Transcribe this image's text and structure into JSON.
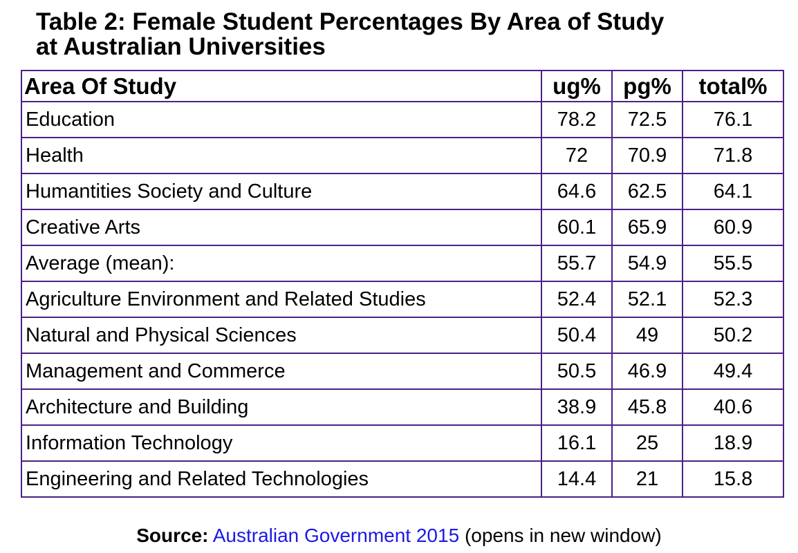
{
  "title": {
    "line1": "Table 2: Female Student Percentages By Area of Study",
    "line2": "at Australian Universities"
  },
  "table": {
    "headers": [
      "Area Of Study",
      "ug%",
      "pg%",
      "total%"
    ],
    "rows": [
      {
        "area": "Education",
        "ug": "78.2",
        "pg": "72.5",
        "total": "76.1"
      },
      {
        "area": "Health",
        "ug": "72",
        "pg": "70.9",
        "total": "71.8"
      },
      {
        "area": "Humantities Society and Culture",
        "ug": "64.6",
        "pg": "62.5",
        "total": "64.1"
      },
      {
        "area": "Creative Arts",
        "ug": "60.1",
        "pg": "65.9",
        "total": "60.9"
      },
      {
        "area": "Average (mean):",
        "ug": "55.7",
        "pg": "54.9",
        "total": "55.5"
      },
      {
        "area": "Agriculture Environment and Related Studies",
        "ug": "52.4",
        "pg": "52.1",
        "total": "52.3"
      },
      {
        "area": "Natural and Physical Sciences",
        "ug": "50.4",
        "pg": "49",
        "total": "50.2"
      },
      {
        "area": "Management and Commerce",
        "ug": "50.5",
        "pg": "46.9",
        "total": "49.4"
      },
      {
        "area": "Architecture and Building",
        "ug": "38.9",
        "pg": "45.8",
        "total": "40.6"
      },
      {
        "area": "Information Technology",
        "ug": "16.1",
        "pg": "25",
        "total": "18.9"
      },
      {
        "area": "Engineering and Related Technologies",
        "ug": "14.4",
        "pg": "21",
        "total": "15.8"
      }
    ],
    "border_color": "#4b1f86"
  },
  "source": {
    "label": "Source:",
    "link_text": "Australian Government 2015",
    "suffix": "(opens in new window)",
    "link_color": "#1a1ae6"
  }
}
